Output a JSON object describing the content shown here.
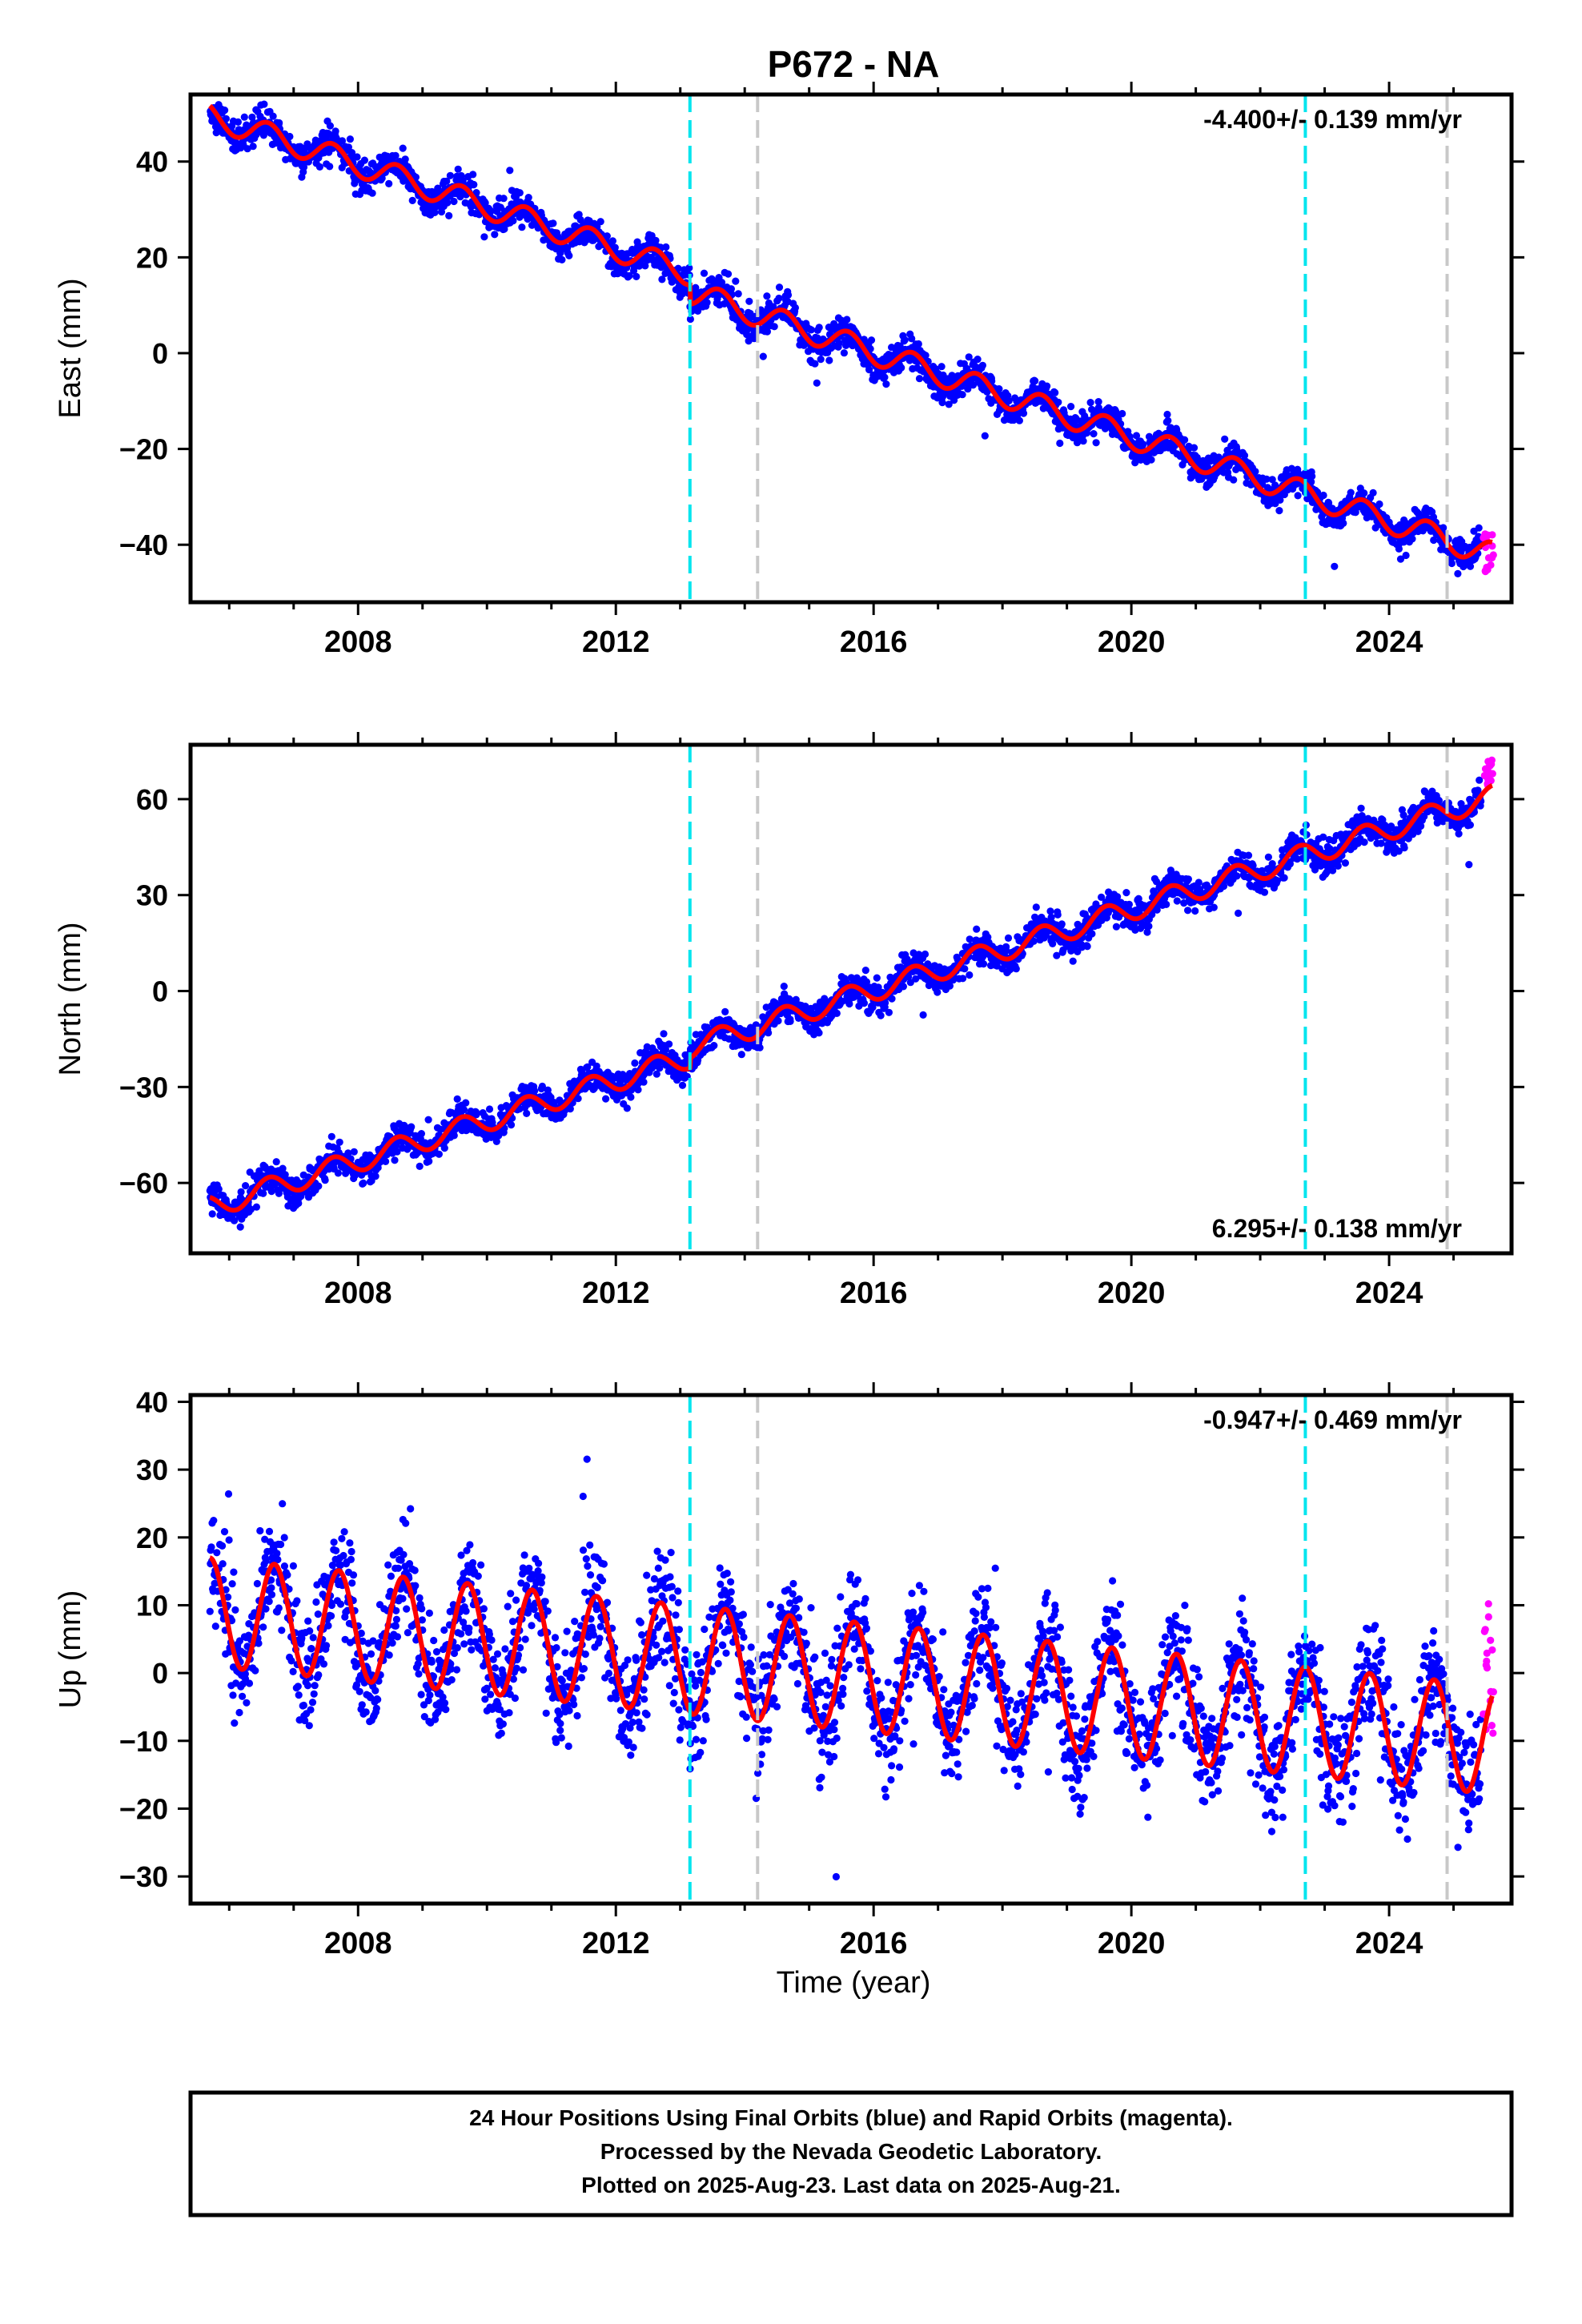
{
  "figure": {
    "title": "P672 - NA",
    "xlabel": "Time (year)"
  },
  "footer": {
    "lines": [
      "24 Hour Positions Using Final Orbits (blue) and Rapid Orbits (magenta).",
      "Processed by the Nevada Geodetic Laboratory.",
      "Plotted on 2025-Aug-23. Last data on 2025-Aug-21."
    ]
  },
  "colors": {
    "final_orbits": "#0000ff",
    "rapid_orbits": "#ff00ff",
    "model_fit": "#ff0000",
    "event_cyan": "#00e5ee",
    "event_gray": "#c8c8c8",
    "frame": "#000000"
  },
  "chart_data": [
    {
      "type": "scatter",
      "component": "east",
      "ylabel": "East (mm)",
      "xlim": [
        2005.4,
        2025.9
      ],
      "ylim": [
        -52,
        54
      ],
      "xticks": [
        2008,
        2012,
        2016,
        2020,
        2024
      ],
      "yticks": [
        -40,
        -20,
        0,
        20,
        40
      ],
      "rate_label": "-4.400+/- 0.139 mm/yr",
      "rate_position": "top-right",
      "event_lines_cyan": [
        2013.15,
        2022.7
      ],
      "event_lines_gray": [
        2014.2,
        2024.9
      ],
      "model": {
        "start": 2005.7,
        "end": 2025.6,
        "intercept": 49.5,
        "rate": -4.4,
        "steps": [
          {
            "at": 2013.15,
            "size": -4.0
          }
        ],
        "annual_amp": 2.6,
        "annual_phase": 0.6,
        "semi_amp": 0.0
      },
      "scatter_noise_mm": 1.6,
      "rapid_points": {
        "from": 2025.45,
        "to": 2025.62,
        "y_range": [
          -46.5,
          -37.5
        ]
      }
    },
    {
      "type": "scatter",
      "component": "north",
      "ylabel": "North (mm)",
      "xlim": [
        2005.4,
        2025.9
      ],
      "ylim": [
        -82,
        77
      ],
      "xticks": [
        2008,
        2012,
        2016,
        2020,
        2024
      ],
      "yticks": [
        -60,
        -30,
        0,
        30,
        60
      ],
      "rate_label": "6.295+/- 0.138 mm/yr",
      "rate_position": "bottom-right",
      "event_lines_cyan": [
        2013.15,
        2022.7
      ],
      "event_lines_gray": [
        2014.2,
        2024.9
      ],
      "model": {
        "start": 2005.7,
        "end": 2025.6,
        "intercept": -67.5,
        "rate": 6.295,
        "steps": [
          {
            "at": 2013.15,
            "size": 3.0
          }
        ],
        "annual_amp": 3.5,
        "annual_phase": 0.55,
        "semi_amp": 0.0
      },
      "scatter_noise_mm": 2.4,
      "rapid_points": {
        "from": 2025.45,
        "to": 2025.62,
        "y_range": [
          64,
          73
        ]
      }
    },
    {
      "type": "scatter",
      "component": "up",
      "ylabel": "Up (mm)",
      "xlim": [
        2005.4,
        2025.9
      ],
      "ylim": [
        -34,
        41
      ],
      "xticks": [
        2008,
        2012,
        2016,
        2020,
        2024
      ],
      "yticks": [
        -30,
        -20,
        -10,
        0,
        10,
        20,
        30,
        40
      ],
      "rate_label": "-0.947+/- 0.469 mm/yr",
      "rate_position": "top-right",
      "event_lines_cyan": [
        2013.15,
        2022.7
      ],
      "event_lines_gray": [
        2014.2,
        2024.9
      ],
      "model": {
        "start": 2005.7,
        "end": 2025.6,
        "intercept": 9.0,
        "rate": -0.947,
        "steps": [],
        "annual_amp": 8.0,
        "annual_phase": 0.0,
        "semi_amp": 0.0
      },
      "scatter_noise_mm": 4.0,
      "rapid_points": {
        "from": 2025.45,
        "to": 2025.62,
        "y_range": [
          -9,
          10.5
        ]
      }
    }
  ]
}
